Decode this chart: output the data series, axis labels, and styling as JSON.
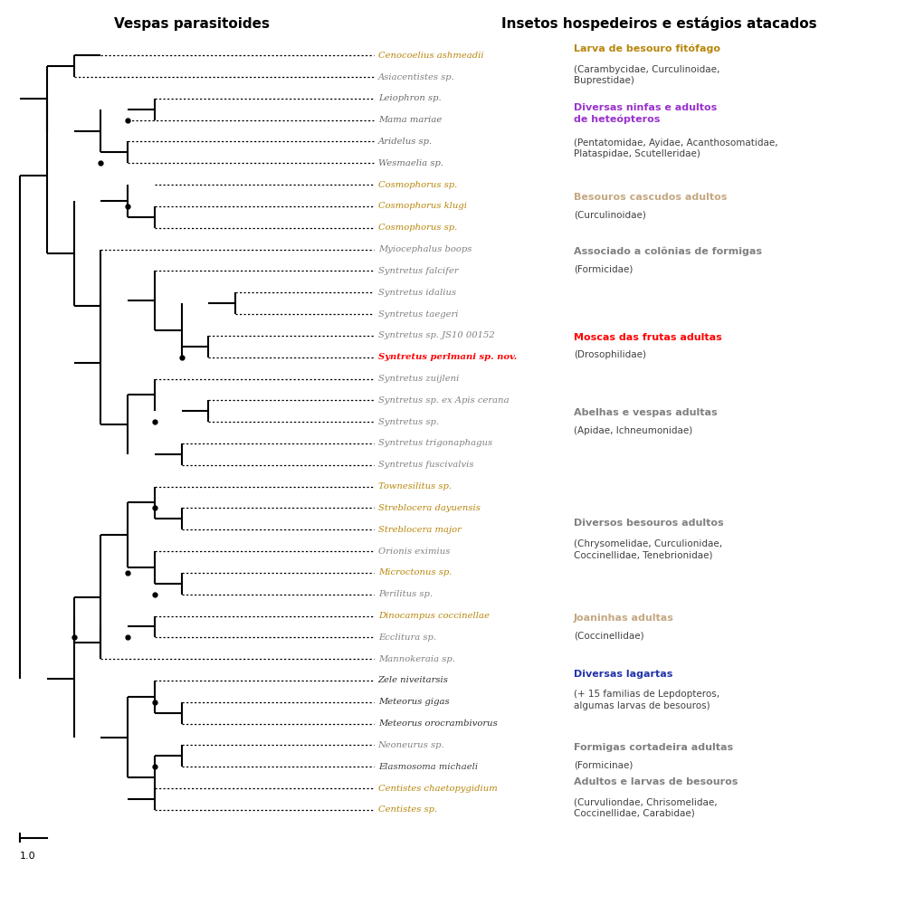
{
  "title_left": "Vespas parasitoides",
  "title_right": "Insetos hospedeiros e estágios atacados",
  "taxa": [
    {
      "name": "Cenocoelius ashmeadii",
      "color": "#b8860b",
      "bold": false
    },
    {
      "name": "Asiacentistes sp.",
      "color": "#808080",
      "bold": false
    },
    {
      "name": "Leiophron sp.",
      "color": "#696969",
      "bold": false
    },
    {
      "name": "Mama mariae",
      "color": "#696969",
      "bold": false
    },
    {
      "name": "Aridelus sp.",
      "color": "#696969",
      "bold": false
    },
    {
      "name": "Wesmaelia sp.",
      "color": "#696969",
      "bold": false
    },
    {
      "name": "Cosmophorus sp.",
      "color": "#b8860b",
      "bold": false
    },
    {
      "name": "Cosmophorus klugi",
      "color": "#b8860b",
      "bold": false
    },
    {
      "name": "Cosmophorus sp.",
      "color": "#b8860b",
      "bold": false
    },
    {
      "name": "Myiocephalus boops",
      "color": "#808080",
      "bold": false
    },
    {
      "name": "Syntretus falcifer",
      "color": "#808080",
      "bold": false
    },
    {
      "name": "Syntretus idalius",
      "color": "#808080",
      "bold": false
    },
    {
      "name": "Syntretus taegeri",
      "color": "#808080",
      "bold": false
    },
    {
      "name": "Syntretus sp. JS10 00152",
      "color": "#808080",
      "bold": false
    },
    {
      "name": "Syntretus perlmani sp. nov.",
      "color": "#ff0000",
      "bold": true
    },
    {
      "name": "Syntretus zuijleni",
      "color": "#808080",
      "bold": false
    },
    {
      "name": "Syntretus sp. ex Apis cerana",
      "color": "#808080",
      "bold": false
    },
    {
      "name": "Syntretus sp.",
      "color": "#808080",
      "bold": false
    },
    {
      "name": "Syntretus trigonaphagus",
      "color": "#808080",
      "bold": false
    },
    {
      "name": "Syntretus fuscivalvis",
      "color": "#808080",
      "bold": false
    },
    {
      "name": "Townesilitus sp.",
      "color": "#b8860b",
      "bold": false
    },
    {
      "name": "Streblocera dayuensis",
      "color": "#b8860b",
      "bold": false
    },
    {
      "name": "Streblocera major",
      "color": "#b8860b",
      "bold": false
    },
    {
      "name": "Orionis eximius",
      "color": "#808080",
      "bold": false
    },
    {
      "name": "Microctonus sp.",
      "color": "#b8860b",
      "bold": false
    },
    {
      "name": "Perilitus sp.",
      "color": "#808080",
      "bold": false
    },
    {
      "name": "Dinocampus coccinellae",
      "color": "#b8860b",
      "bold": false
    },
    {
      "name": "Ecclitura sp.",
      "color": "#808080",
      "bold": false
    },
    {
      "name": "Mannokeraia sp.",
      "color": "#808080",
      "bold": false
    },
    {
      "name": "Zele niveitarsis",
      "color": "#303030",
      "bold": false
    },
    {
      "name": "Meteorus gigas",
      "color": "#303030",
      "bold": false
    },
    {
      "name": "Meteorus orocrambivorus",
      "color": "#303030",
      "bold": false
    },
    {
      "name": "Neoneurus sp.",
      "color": "#808080",
      "bold": false
    },
    {
      "name": "Elasmosoma michaeli",
      "color": "#404040",
      "bold": false
    },
    {
      "name": "Centistes chaetopygidium",
      "color": "#b8860b",
      "bold": false
    },
    {
      "name": "Centistes sp.",
      "color": "#b8860b",
      "bold": false
    }
  ],
  "host_groups": [
    {
      "taxon_indices": [
        0,
        1
      ],
      "title": "Larva de besouro fitófago",
      "title_color": "#b8860b",
      "subtitle": "(Carambycidae, Curculinoidae,\nBuprestidae)",
      "subtitle_color": "#404040"
    },
    {
      "taxon_indices": [
        2,
        3,
        4,
        5
      ],
      "title": "Diversas ninfas e adultos\nde heteópteros",
      "title_color": "#9932cc",
      "subtitle": "(Pentatomidae, Ayidae, Acanthosomatidae,\nPlataspidae, Scutelleridae)",
      "subtitle_color": "#404040"
    },
    {
      "taxon_indices": [
        6,
        7,
        8
      ],
      "title": "Besouros cascudos adultos",
      "title_color": "#c4a882",
      "subtitle": "(Curculinoidae)",
      "subtitle_color": "#404040"
    },
    {
      "taxon_indices": [
        9,
        10
      ],
      "title": "Associado a colônias de formigas",
      "title_color": "#808080",
      "subtitle": "(Formicidae)",
      "subtitle_color": "#404040"
    },
    {
      "taxon_indices": [
        13,
        14
      ],
      "title": "Moscas das frutas adultas",
      "title_color": "#ff0000",
      "subtitle": "(Drosophilidae)",
      "subtitle_color": "#404040"
    },
    {
      "taxon_indices": [
        15,
        16,
        17,
        18,
        19
      ],
      "title": "Abelhas e vespas adultas",
      "title_color": "#808080",
      "subtitle": "(Apidae, Ichneumonidae)",
      "subtitle_color": "#404040"
    },
    {
      "taxon_indices": [
        20,
        21,
        22,
        23,
        24,
        25
      ],
      "title": "Diversos besouros adultos",
      "title_color": "#808080",
      "subtitle": "(Chrysomelidae, Curculionidae,\nCoccinellidae, Tenebrionidae)",
      "subtitle_color": "#404040"
    },
    {
      "taxon_indices": [
        26,
        27
      ],
      "title": "Joaninhas adultas",
      "title_color": "#c4a882",
      "subtitle": "(Coccinellidae)",
      "subtitle_color": "#404040"
    },
    {
      "taxon_indices": [
        28,
        29,
        30,
        31
      ],
      "title": "Diversas lagartas",
      "title_color": "#2233aa",
      "subtitle": "(+ 15 familias de Lepdopteros,\nalgumas larvas de besouros)",
      "subtitle_color": "#404040"
    },
    {
      "taxon_indices": [
        32,
        33
      ],
      "title": "Formigas cortadeira adultas",
      "title_color": "#808080",
      "subtitle": "(Formicinae)",
      "subtitle_color": "#404040"
    },
    {
      "taxon_indices": [
        34,
        35
      ],
      "title": "Adultos e larvas de besouros",
      "title_color": "#808080",
      "subtitle": "(Curvuliondae, Chrisomelidae,\nCoccinellidae, Carabidae)",
      "subtitle_color": "#404040"
    }
  ],
  "scale_bar_label": "1.0"
}
